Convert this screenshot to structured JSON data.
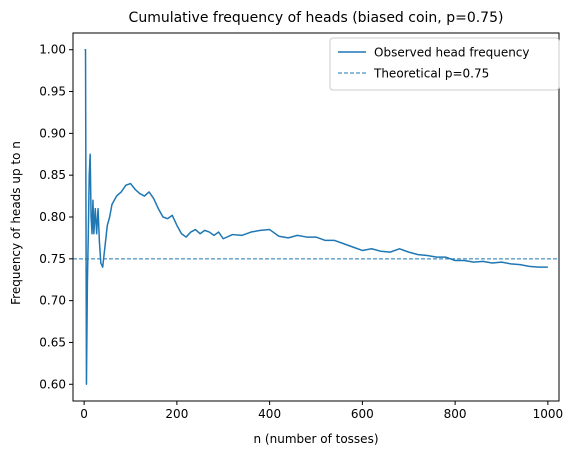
{
  "chart_data": {
    "type": "line",
    "title": "Cumulative frequency of heads (biased coin, p=0.75)",
    "xlabel": "n (number of tosses)",
    "ylabel": "Frequency of heads up to n",
    "xlim": [
      -24,
      1024
    ],
    "ylim": [
      0.58,
      1.02
    ],
    "xticks": [
      0,
      200,
      400,
      600,
      800,
      1000
    ],
    "xtick_labels": [
      "0",
      "200",
      "400",
      "600",
      "800",
      "1000"
    ],
    "yticks": [
      0.6,
      0.65,
      0.7,
      0.75,
      0.8,
      0.85,
      0.9,
      0.95,
      1.0
    ],
    "ytick_labels": [
      "0.60",
      "0.65",
      "0.70",
      "0.75",
      "0.80",
      "0.85",
      "0.90",
      "0.95",
      "1.00"
    ],
    "grid": false,
    "legend_position": "top-right",
    "series": [
      {
        "name": "Observed head frequency",
        "style": "solid",
        "color": "#1f77b4",
        "x": [
          1,
          3,
          5,
          7,
          9,
          11,
          13,
          15,
          17,
          19,
          21,
          24,
          27,
          30,
          33,
          36,
          40,
          45,
          50,
          55,
          60,
          65,
          70,
          80,
          90,
          100,
          110,
          120,
          130,
          140,
          150,
          160,
          170,
          180,
          190,
          200,
          210,
          220,
          230,
          240,
          250,
          260,
          270,
          280,
          290,
          300,
          320,
          340,
          360,
          380,
          400,
          420,
          440,
          460,
          480,
          500,
          520,
          540,
          560,
          580,
          600,
          620,
          640,
          660,
          680,
          700,
          720,
          740,
          760,
          780,
          800,
          820,
          840,
          860,
          880,
          900,
          920,
          940,
          960,
          980,
          1000
        ],
        "values": [
          1.0,
          1.0,
          0.6,
          0.72,
          0.78,
          0.85,
          0.875,
          0.8,
          0.78,
          0.82,
          0.78,
          0.81,
          0.78,
          0.81,
          0.77,
          0.745,
          0.74,
          0.765,
          0.79,
          0.8,
          0.815,
          0.82,
          0.825,
          0.83,
          0.838,
          0.84,
          0.833,
          0.828,
          0.825,
          0.83,
          0.822,
          0.81,
          0.8,
          0.798,
          0.802,
          0.79,
          0.78,
          0.776,
          0.782,
          0.785,
          0.78,
          0.784,
          0.782,
          0.778,
          0.782,
          0.774,
          0.779,
          0.778,
          0.782,
          0.784,
          0.785,
          0.777,
          0.775,
          0.778,
          0.776,
          0.776,
          0.772,
          0.772,
          0.768,
          0.764,
          0.76,
          0.762,
          0.759,
          0.758,
          0.762,
          0.758,
          0.755,
          0.754,
          0.752,
          0.752,
          0.748,
          0.748,
          0.746,
          0.747,
          0.745,
          0.746,
          0.744,
          0.743,
          0.741,
          0.74,
          0.74
        ]
      },
      {
        "name": "Theoretical p=0.75",
        "style": "dashed",
        "color": "#1f77b4",
        "y": 0.75
      }
    ]
  }
}
